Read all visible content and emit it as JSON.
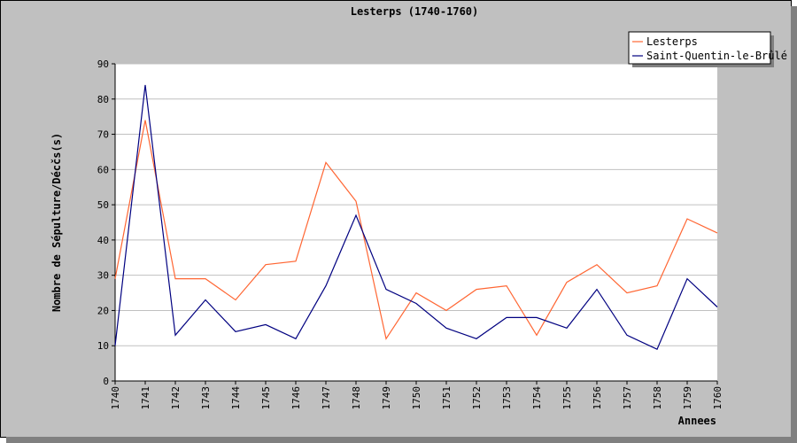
{
  "chart_data": {
    "type": "line",
    "title": "Lesterps (1740-1760)",
    "xlabel": "Annees",
    "ylabel": "Nombre de Sépulture/Décčs(s)",
    "x": [
      "1740",
      "1741",
      "1742",
      "1743",
      "1744",
      "1745",
      "1746",
      "1747",
      "1748",
      "1749",
      "1750",
      "1751",
      "1752",
      "1753",
      "1754",
      "1755",
      "1756",
      "1757",
      "1758",
      "1759",
      "1760"
    ],
    "ylim": [
      0,
      90
    ],
    "yticks": [
      0,
      10,
      20,
      30,
      40,
      50,
      60,
      70,
      80,
      90
    ],
    "grid": true,
    "legend_position": "top-right",
    "series": [
      {
        "name": "Lesterps",
        "color": "#ff6633",
        "values": [
          29,
          74,
          29,
          29,
          23,
          33,
          34,
          62,
          51,
          12,
          25,
          20,
          26,
          27,
          13,
          28,
          33,
          25,
          27,
          46,
          42
        ]
      },
      {
        "name": "Saint-Quentin-le-Brûlé",
        "color": "#000080",
        "values": [
          10,
          84,
          13,
          23,
          14,
          16,
          12,
          27,
          47,
          26,
          22,
          15,
          12,
          18,
          18,
          15,
          26,
          13,
          9,
          29,
          21
        ]
      }
    ]
  }
}
